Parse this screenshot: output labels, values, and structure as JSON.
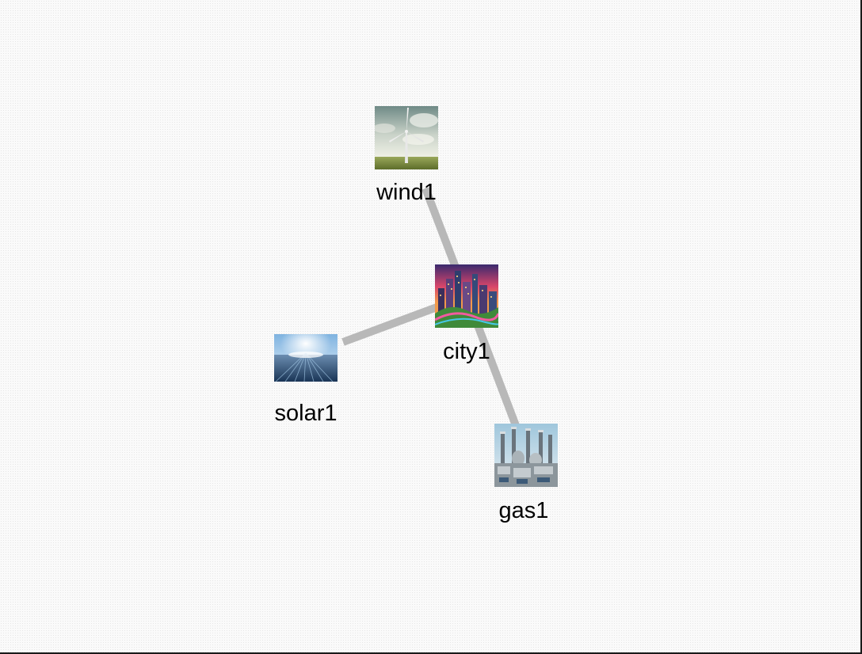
{
  "nodes": [
    {
      "id": "wind1",
      "label": "wind1",
      "icon": "wind-turbine-icon",
      "kind": "wind"
    },
    {
      "id": "city1",
      "label": "city1",
      "icon": "city-skyline-icon",
      "kind": "city"
    },
    {
      "id": "solar1",
      "label": "solar1",
      "icon": "solar-panel-field-icon",
      "kind": "solar"
    },
    {
      "id": "gas1",
      "label": "gas1",
      "icon": "gas-power-plant-icon",
      "kind": "gas"
    }
  ],
  "edges": [
    {
      "from": "wind1",
      "to": "city1"
    },
    {
      "from": "solar1",
      "to": "city1"
    },
    {
      "from": "city1",
      "to": "gas1"
    }
  ]
}
